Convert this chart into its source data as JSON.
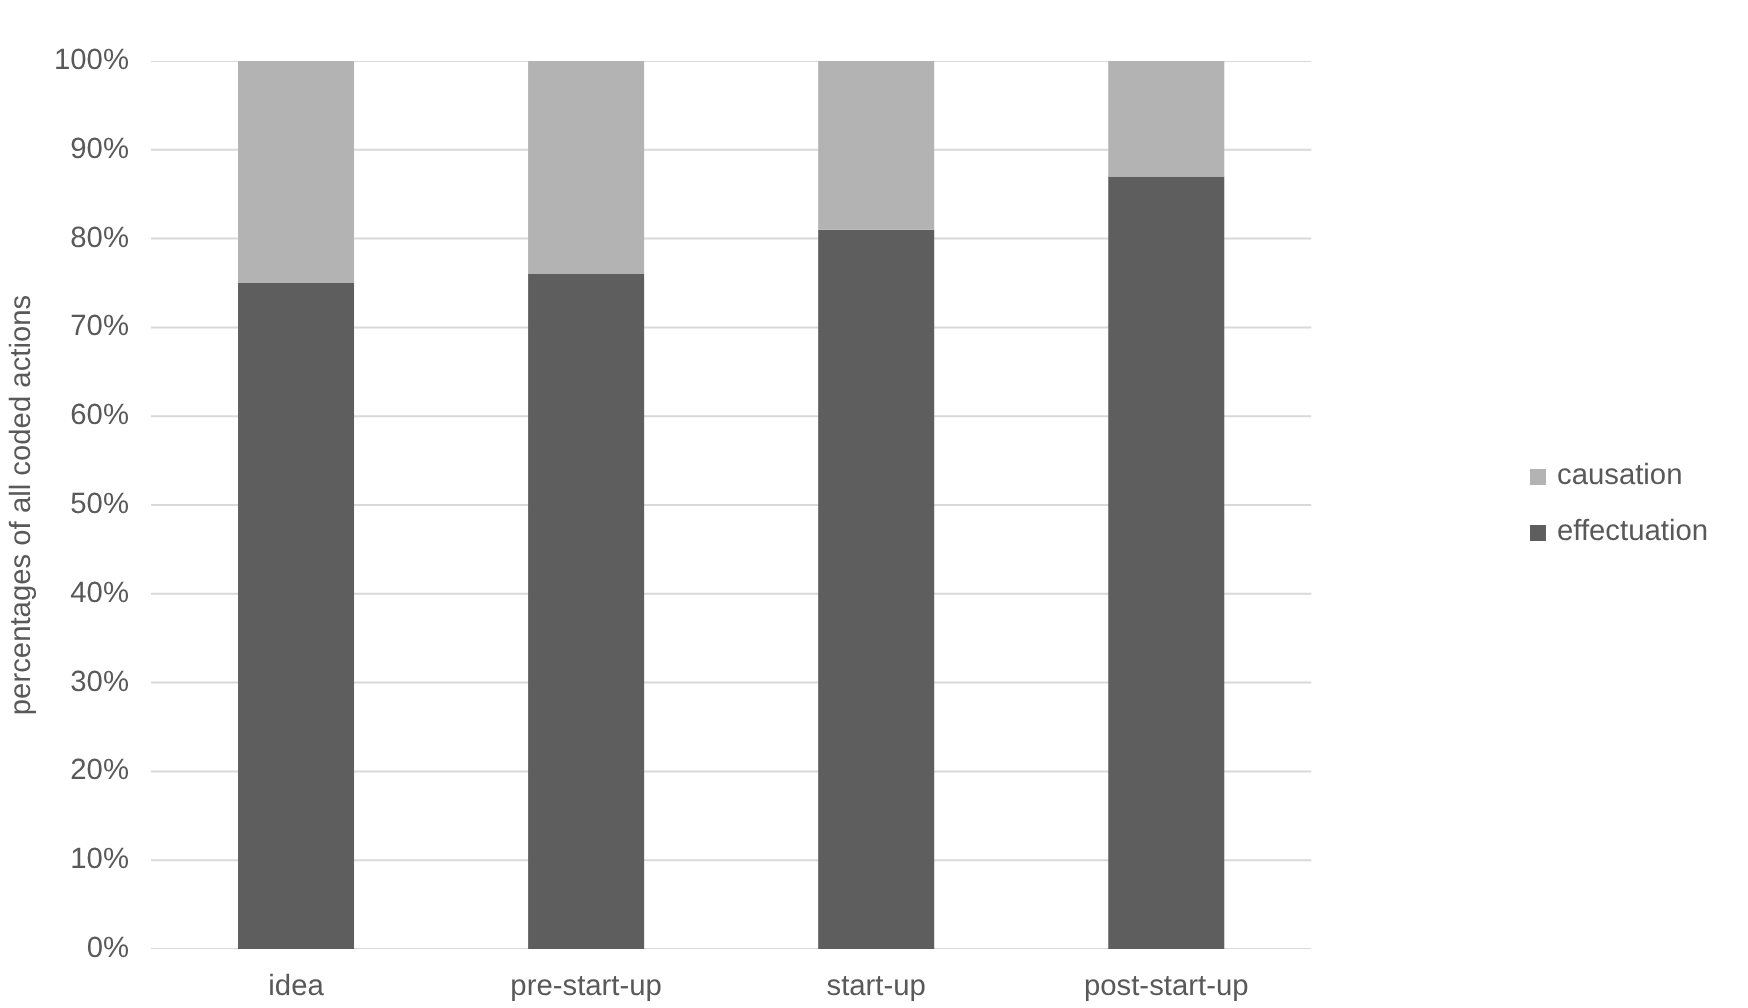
{
  "chart_data": {
    "type": "bar",
    "stacked": true,
    "ylabel": "percentages of all coded actions",
    "categories": [
      "idea",
      "pre-start-up",
      "start-up",
      "post-start-up"
    ],
    "series": [
      {
        "name": "effectuation",
        "color": "#5e5e5e",
        "values": [
          75,
          76,
          81,
          87
        ]
      },
      {
        "name": "causation",
        "color": "#b3b3b3",
        "values": [
          25,
          24,
          19,
          13
        ]
      }
    ],
    "ylim": [
      0,
      100
    ],
    "yticks": [
      {
        "value": 0,
        "label": "0%"
      },
      {
        "value": 10,
        "label": "10%"
      },
      {
        "value": 20,
        "label": "20%"
      },
      {
        "value": 30,
        "label": "30%"
      },
      {
        "value": 40,
        "label": "40%"
      },
      {
        "value": 50,
        "label": "50%"
      },
      {
        "value": 60,
        "label": "60%"
      },
      {
        "value": 70,
        "label": "70%"
      },
      {
        "value": 80,
        "label": "80%"
      },
      {
        "value": 90,
        "label": "90%"
      },
      {
        "value": 100,
        "label": "100%"
      }
    ],
    "grid": "y",
    "legend": "right"
  }
}
